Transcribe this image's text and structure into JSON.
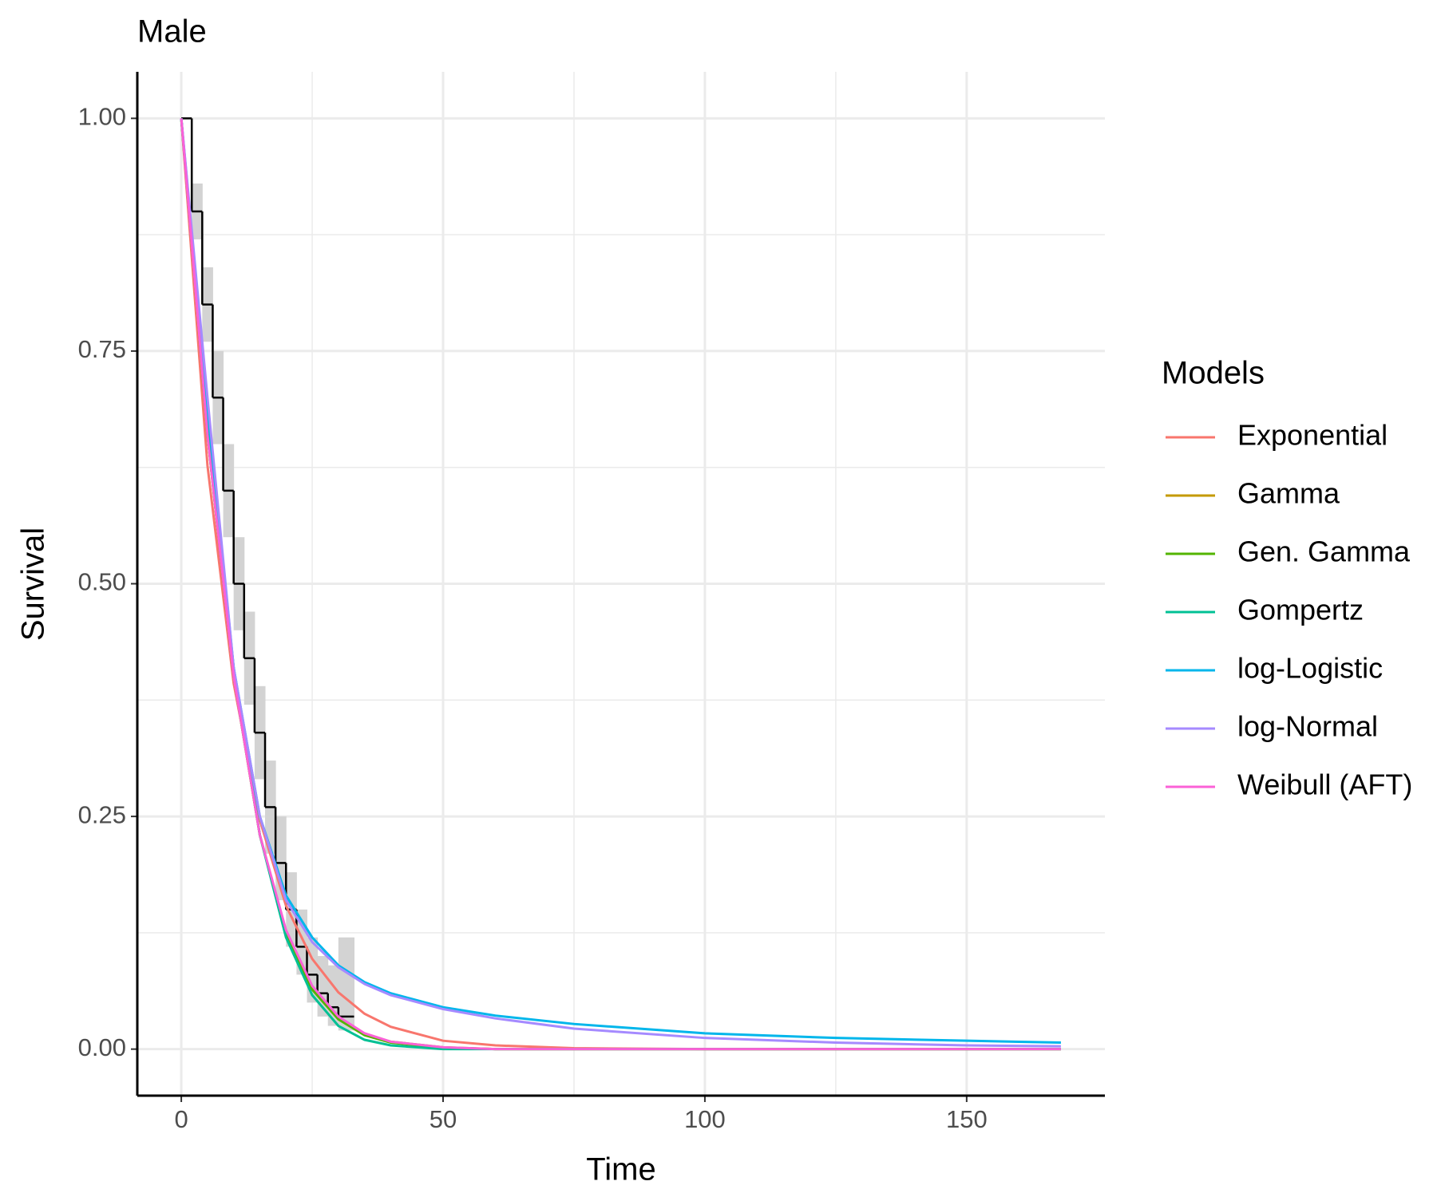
{
  "chart_data": {
    "type": "survival",
    "title": "Male",
    "x_label": "Time",
    "y_label": "Survival",
    "legend_title": "Models",
    "legend_position": "right",
    "xlim": [
      -8.4,
      176.4
    ],
    "ylim": [
      -0.05,
      1.05
    ],
    "xticks": [
      0,
      50,
      100,
      150
    ],
    "yticks": [
      {
        "value": 0,
        "label": "0.00"
      },
      {
        "value": 0.25,
        "label": "0.25"
      },
      {
        "value": 0.5,
        "label": "0.50"
      },
      {
        "value": 0.75,
        "label": "0.75"
      },
      {
        "value": 1,
        "label": "1.00"
      }
    ],
    "x_minor_grid": [
      25,
      75,
      125
    ],
    "y_minor_grid": [
      0.125,
      0.375,
      0.625,
      0.875
    ],
    "grid": true,
    "x": [
      0,
      5,
      10,
      15,
      20,
      25,
      30,
      35,
      40,
      50,
      60,
      75,
      100,
      125,
      150,
      168
    ],
    "series": [
      {
        "name": "Exponential",
        "color": "#F8766D",
        "values": [
          1,
          0.627,
          0.393,
          0.246,
          0.154,
          0.097,
          0.061,
          0.038,
          0.024,
          0.009,
          0.004,
          0.001,
          0,
          0,
          0,
          0
        ]
      },
      {
        "name": "Gamma",
        "color": "#C49A00",
        "values": [
          1,
          0.66,
          0.4,
          0.23,
          0.125,
          0.065,
          0.033,
          0.016,
          0.008,
          0.002,
          0,
          0,
          0,
          0,
          0,
          0
        ]
      },
      {
        "name": "Gen. Gamma",
        "color": "#53B400",
        "values": [
          1,
          0.66,
          0.4,
          0.23,
          0.124,
          0.064,
          0.032,
          0.015,
          0.007,
          0.0015,
          0,
          0,
          0,
          0,
          0,
          0
        ]
      },
      {
        "name": "Gompertz",
        "color": "#00C094",
        "values": [
          1,
          0.67,
          0.41,
          0.23,
          0.12,
          0.058,
          0.025,
          0.01,
          0.004,
          0,
          0,
          0,
          0,
          0,
          0,
          0
        ]
      },
      {
        "name": "log-Logistic",
        "color": "#00B6EB",
        "values": [
          1,
          0.69,
          0.41,
          0.25,
          0.165,
          0.12,
          0.09,
          0.072,
          0.06,
          0.045,
          0.036,
          0.027,
          0.017,
          0.012,
          0.009,
          0.007
        ]
      },
      {
        "name": "log-Normal",
        "color": "#A58AFF",
        "values": [
          1,
          0.7,
          0.41,
          0.25,
          0.16,
          0.115,
          0.088,
          0.07,
          0.058,
          0.043,
          0.033,
          0.022,
          0.012,
          0.007,
          0.004,
          0.003
        ]
      },
      {
        "name": "Weibull (AFT)",
        "color": "#FB61D7",
        "values": [
          1,
          0.66,
          0.4,
          0.23,
          0.128,
          0.068,
          0.035,
          0.017,
          0.008,
          0.002,
          0,
          0,
          0,
          0,
          0,
          0
        ]
      }
    ],
    "km_color": "#000000",
    "km_band_color": "#d3d3d3",
    "km_time": [
      0,
      2,
      4,
      6,
      8,
      10,
      12,
      14,
      16,
      18,
      20,
      22,
      24,
      26,
      28,
      30,
      33
    ],
    "km_survival": [
      1,
      0.9,
      0.8,
      0.7,
      0.6,
      0.5,
      0.42,
      0.34,
      0.26,
      0.2,
      0.15,
      0.11,
      0.08,
      0.06,
      0.045,
      0.035,
      0.035
    ],
    "km_lower": [
      1,
      0.87,
      0.76,
      0.65,
      0.55,
      0.45,
      0.37,
      0.29,
      0.21,
      0.16,
      0.11,
      0.08,
      0.05,
      0.035,
      0.025,
      0.02,
      0.02
    ],
    "km_upper": [
      1,
      0.93,
      0.84,
      0.75,
      0.65,
      0.55,
      0.47,
      0.39,
      0.31,
      0.25,
      0.19,
      0.15,
      0.12,
      0.1,
      0.09,
      0.12,
      0.12
    ]
  }
}
